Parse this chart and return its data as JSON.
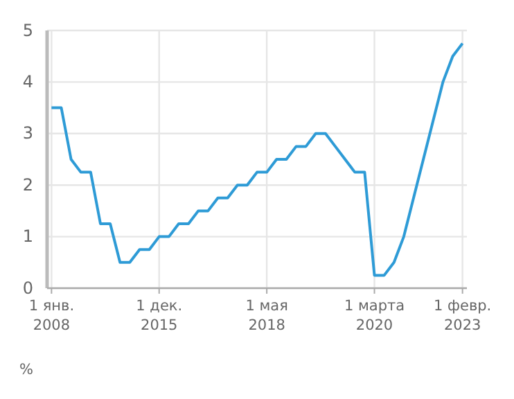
{
  "chart_data": {
    "type": "line",
    "ylabel": "%",
    "categories": [
      "1 янв. 2008",
      null,
      null,
      null,
      null,
      null,
      null,
      null,
      null,
      null,
      null,
      "1 дек. 2015",
      null,
      null,
      null,
      null,
      null,
      null,
      null,
      null,
      null,
      null,
      "1 мая 2018",
      null,
      null,
      null,
      null,
      null,
      null,
      null,
      null,
      null,
      null,
      "1 марта 2020",
      null,
      null,
      null,
      null,
      null,
      null,
      null,
      null,
      "1 февр. 2023"
    ],
    "series": [
      {
        "color": "#2e9bd6",
        "values": [
          3.5,
          3.5,
          2.5,
          2.25,
          2.25,
          1.25,
          1.25,
          0.5,
          0.5,
          0.75,
          0.75,
          1.0,
          1.0,
          1.25,
          1.25,
          1.5,
          1.5,
          1.75,
          1.75,
          2.0,
          2.0,
          2.25,
          2.25,
          2.5,
          2.5,
          2.75,
          2.75,
          3.0,
          3.0,
          2.75,
          2.5,
          2.25,
          2.25,
          0.25,
          0.25,
          0.5,
          1.0,
          1.75,
          2.5,
          3.25,
          4.0,
          4.5,
          4.75
        ]
      }
    ],
    "ylim": [
      0,
      5
    ],
    "yticks": [
      0,
      1,
      2,
      3,
      4,
      5
    ],
    "grid": true,
    "marker": "none",
    "line_style": "solid"
  }
}
